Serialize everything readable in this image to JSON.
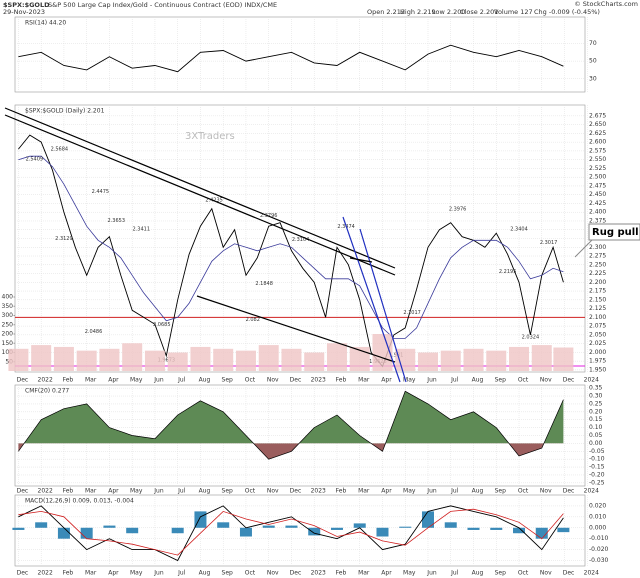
{
  "header": {
    "symbol": "$SPX:$GOLD",
    "description": "S&P 500 Large Cap Index/Gold - Continuous Contract (EOD) INDX/CME",
    "date": "29-Nov-2023",
    "stats": [
      "Open 2.212",
      "High 2.219",
      "Low 2.200",
      "Close 2.201",
      "Volume 127",
      "Chg -0.009 (-0.45%)"
    ],
    "credit": "© StockCharts.com"
  },
  "chart_data": [
    {
      "type": "line",
      "title": "RSI(14) 44.20",
      "x": [
        0,
        1,
        2,
        3,
        4,
        5,
        6,
        7,
        8,
        9,
        10,
        11,
        12,
        13,
        14,
        15,
        16,
        17,
        18,
        19,
        20,
        21,
        22,
        23,
        23.95
      ],
      "series": [
        {
          "color": "#000000",
          "values": [
            55,
            60,
            45,
            40,
            55,
            42,
            45,
            38,
            60,
            62,
            50,
            55,
            60,
            48,
            45,
            60,
            50,
            40,
            58,
            68,
            60,
            55,
            62,
            55,
            44.2
          ]
        }
      ],
      "ylim": [
        15,
        100
      ],
      "yticks": [
        70,
        50,
        30
      ],
      "grid": true
    },
    {
      "type": "line",
      "title": "$SPX:$GOLD (Daily) 2.201",
      "watermark": "3XTraders",
      "callout": "Rug pull",
      "x": [
        0,
        0.5,
        1,
        1.5,
        2,
        2.5,
        3,
        3.5,
        4,
        4.5,
        5,
        5.5,
        6,
        6.5,
        7,
        7.5,
        8,
        8.5,
        9,
        9.5,
        10,
        10.5,
        11,
        11.5,
        12,
        12.5,
        13,
        13.5,
        14,
        14.5,
        15,
        15.5,
        16,
        16.5,
        17,
        17.5,
        18,
        18.5,
        19,
        19.5,
        20,
        20.5,
        21,
        21.5,
        22,
        22.5,
        23,
        23.5,
        23.95
      ],
      "series": [
        {
          "name": "$SPX:$GOLD",
          "color": "#000000",
          "values": [
            2.58,
            2.62,
            2.6,
            2.52,
            2.4,
            2.3,
            2.22,
            2.3,
            2.33,
            2.22,
            2.12,
            2.1,
            2.08,
            1.99,
            2.15,
            2.28,
            2.36,
            2.41,
            2.3,
            2.35,
            2.22,
            2.27,
            2.36,
            2.37,
            2.29,
            2.24,
            2.2,
            2.1,
            2.3,
            2.25,
            2.15,
            2.0,
            1.96,
            2.05,
            2.07,
            2.18,
            2.3,
            2.35,
            2.37,
            2.33,
            2.32,
            2.3,
            2.34,
            2.28,
            2.2,
            2.05,
            2.22,
            2.3,
            2.2
          ]
        },
        {
          "color": "#3a3a9a",
          "values": [
            2.55,
            2.56,
            2.56,
            2.53,
            2.48,
            2.42,
            2.36,
            2.32,
            2.3,
            2.27,
            2.22,
            2.17,
            2.13,
            2.09,
            2.1,
            2.14,
            2.2,
            2.26,
            2.29,
            2.31,
            2.3,
            2.29,
            2.3,
            2.31,
            2.3,
            2.27,
            2.24,
            2.21,
            2.21,
            2.21,
            2.19,
            2.13,
            2.07,
            2.04,
            2.04,
            2.07,
            2.14,
            2.21,
            2.27,
            2.3,
            2.32,
            2.32,
            2.32,
            2.3,
            2.26,
            2.21,
            2.22,
            2.24,
            2.23
          ]
        }
      ],
      "annotations": [
        {
          "x": 0.7,
          "value": 2.5409
        },
        {
          "x": 1.8,
          "value": 2.5684
        },
        {
          "x": 3.6,
          "value": 2.4475
        },
        {
          "x": 2.0,
          "value": 2.3129
        },
        {
          "x": 4.3,
          "value": 2.3653
        },
        {
          "x": 5.4,
          "value": 2.3411
        },
        {
          "x": 8.6,
          "value": 2.4235
        },
        {
          "x": 11.0,
          "value": 2.3796
        },
        {
          "x": 12.4,
          "value": 2.3104
        },
        {
          "x": 14.4,
          "value": 2.3474
        },
        {
          "x": 19.3,
          "value": 2.3976
        },
        {
          "x": 22.0,
          "value": 2.3404
        },
        {
          "x": 23.3,
          "value": 2.3017
        },
        {
          "x": 3.3,
          "value": 2.0486
        },
        {
          "x": 6.3,
          "value": 2.0685
        },
        {
          "x": 10.3,
          "value": 2.082
        },
        {
          "x": 10.8,
          "value": 2.1848
        },
        {
          "x": 6.5,
          "value": 1.9673
        },
        {
          "x": 15.8,
          "value": 1.9628
        },
        {
          "x": 16.6,
          "value": 1.981
        },
        {
          "x": 17.3,
          "value": 2.1017
        },
        {
          "x": 21.5,
          "value": 2.2195
        },
        {
          "x": 22.5,
          "value": 2.0324
        }
      ],
      "hlines": [
        {
          "value": 2.1,
          "color": "#d02020"
        },
        {
          "value": 1.961,
          "color": "#e020e0"
        }
      ],
      "xlim": [
        -0.15,
        24.9
      ],
      "xticks": [
        {
          "value": 0,
          "label": "Dec"
        },
        {
          "value": 1,
          "label": "2022"
        },
        {
          "value": 2,
          "label": "Feb"
        },
        {
          "value": 3,
          "label": "Mar"
        },
        {
          "value": 4,
          "label": "Apr"
        },
        {
          "value": 5,
          "label": "May"
        },
        {
          "value": 6,
          "label": "Jun"
        },
        {
          "value": 7,
          "label": "Jul"
        },
        {
          "value": 8,
          "label": "Aug"
        },
        {
          "value": 9,
          "label": "Sep"
        },
        {
          "value": 10,
          "label": "Oct"
        },
        {
          "value": 11,
          "label": "Nov"
        },
        {
          "value": 12,
          "label": "Dec"
        },
        {
          "value": 13,
          "label": "2023"
        },
        {
          "value": 14,
          "label": "Feb"
        },
        {
          "value": 15,
          "label": "Mar"
        },
        {
          "value": 16,
          "label": "Apr"
        },
        {
          "value": 17,
          "label": "May"
        },
        {
          "value": 18,
          "label": "Jun"
        },
        {
          "value": 19,
          "label": "Jul"
        },
        {
          "value": 20,
          "label": "Aug"
        },
        {
          "value": 21,
          "label": "Sep"
        },
        {
          "value": 22,
          "label": "Oct"
        },
        {
          "value": 23,
          "label": "Nov"
        },
        {
          "value": 24,
          "label": "Dec"
        },
        {
          "value": 25,
          "label": "2024"
        }
      ],
      "ylim": [
        1.944,
        2.706
      ],
      "yticks": [
        {
          "value": 1.95,
          "label": "1.950"
        },
        1.975,
        {
          "value": 2,
          "label": "2.000"
        },
        2.025,
        {
          "value": 2.05,
          "label": "2.050"
        },
        2.075,
        {
          "value": 2.1,
          "label": "2.100"
        },
        2.125,
        {
          "value": 2.15,
          "label": "2.150"
        },
        2.175,
        {
          "value": 2.2,
          "label": "2.200"
        },
        2.225,
        {
          "value": 2.25,
          "label": "2.250"
        },
        2.275,
        {
          "value": 2.3,
          "label": "2.300"
        },
        2.325,
        {
          "value": 2.35,
          "label": "2.350"
        },
        2.375,
        {
          "value": 2.4,
          "label": "2.400"
        },
        2.425,
        {
          "value": 2.45,
          "label": "2.450"
        },
        2.475,
        {
          "value": 2.5,
          "label": "2.500"
        },
        2.525,
        {
          "value": 2.55,
          "label": "2.550"
        },
        2.575,
        {
          "value": 2.6,
          "label": "2.600"
        },
        2.625,
        {
          "value": 2.65,
          "label": "2.650"
        },
        2.675
      ],
      "grid": true
    },
    {
      "type": "bar",
      "x": [
        0,
        1,
        2,
        3,
        4,
        5,
        6,
        7,
        8,
        9,
        10,
        11,
        12,
        13,
        14,
        15,
        16,
        17,
        18,
        19,
        20,
        21,
        22,
        23,
        23.95
      ],
      "values": [
        120,
        140,
        130,
        110,
        120,
        150,
        110,
        100,
        130,
        120,
        110,
        140,
        120,
        100,
        150,
        130,
        200,
        120,
        100,
        110,
        120,
        110,
        130,
        140,
        127
      ],
      "color": "#efc4c4",
      "ylim": [
        0,
        400
      ],
      "yticks": [
        50,
        100,
        150,
        200,
        250,
        300,
        350,
        400
      ]
    },
    {
      "type": "area",
      "title": "CMF(20) 0.277",
      "x": [
        0,
        1,
        2,
        3,
        4,
        5,
        6,
        7,
        8,
        9,
        10,
        11,
        12,
        13,
        14,
        15,
        16,
        17,
        18,
        19,
        20,
        21,
        22,
        23,
        23.95
      ],
      "values": [
        -0.05,
        0.15,
        0.22,
        0.25,
        0.1,
        0.05,
        0.03,
        0.18,
        0.27,
        0.2,
        0.05,
        -0.1,
        -0.05,
        0.1,
        0.18,
        0.05,
        -0.05,
        0.33,
        0.25,
        0.15,
        0.2,
        0.1,
        -0.08,
        -0.03,
        0.277
      ],
      "colors": [
        "#5e8a55",
        "#9a5d5d"
      ],
      "ylim": [
        -0.27,
        0.37
      ],
      "yticks": [
        0.35,
        {
          "value": 0.3,
          "label": "0.30"
        },
        0.25,
        {
          "value": 0.2,
          "label": "0.20"
        },
        0.15,
        {
          "value": 0.1,
          "label": "0.10"
        },
        0.05,
        {
          "value": 0,
          "label": "0.00"
        },
        -0.05,
        {
          "value": -0.1,
          "label": "-0.10"
        },
        -0.15,
        {
          "value": -0.2,
          "label": "-0.20"
        },
        -0.25
      ],
      "grid": true
    },
    {
      "type": "macd",
      "title": "MACD(12,26,9) 0.009, 0.013, -0.004",
      "x": [
        0,
        1,
        2,
        3,
        4,
        5,
        6,
        7,
        8,
        9,
        10,
        11,
        12,
        13,
        14,
        15,
        16,
        17,
        18,
        19,
        20,
        21,
        22,
        23,
        23.95
      ],
      "series": [
        {
          "color": "#000000",
          "values": [
            0.01,
            0.02,
            0,
            -0.02,
            -0.01,
            -0.02,
            -0.02,
            -0.03,
            0.01,
            0.02,
            0,
            0.005,
            0.01,
            -0.005,
            -0.01,
            0,
            -0.02,
            -0.015,
            0.015,
            0.02,
            0.015,
            0.01,
            0,
            -0.02,
            0.009
          ]
        },
        {
          "color": "#d02020",
          "values": [
            0.012,
            0.015,
            0.01,
            -0.01,
            -0.012,
            -0.015,
            -0.02,
            -0.025,
            -0.005,
            0.015,
            0.008,
            0.003,
            0.008,
            0.002,
            -0.008,
            -0.004,
            -0.012,
            -0.016,
            0,
            0.015,
            0.017,
            0.012,
            0.005,
            -0.01,
            0.013
          ]
        },
        {
          "color": "#3a8ab8",
          "values": [
            -0.002,
            0.005,
            -0.01,
            -0.01,
            0.002,
            -0.005,
            0,
            -0.005,
            0.015,
            0.005,
            -0.008,
            0.002,
            0.002,
            -0.007,
            -0.002,
            0.004,
            -0.008,
            0.001,
            0.015,
            0.005,
            -0.002,
            -0.002,
            -0.005,
            -0.01,
            -0.004
          ]
        }
      ],
      "ylim": [
        -0.035,
        0.03
      ],
      "yticks": [
        {
          "value": 0.02,
          "label": "0.020"
        },
        {
          "value": 0.01,
          "label": "0.010"
        },
        {
          "value": 0,
          "label": "0.000"
        },
        {
          "value": -0.01,
          "label": "-0.010"
        },
        {
          "value": -0.02,
          "label": "-0.020"
        },
        {
          "value": -0.03,
          "label": "-0.030"
        }
      ],
      "grid": true
    }
  ]
}
